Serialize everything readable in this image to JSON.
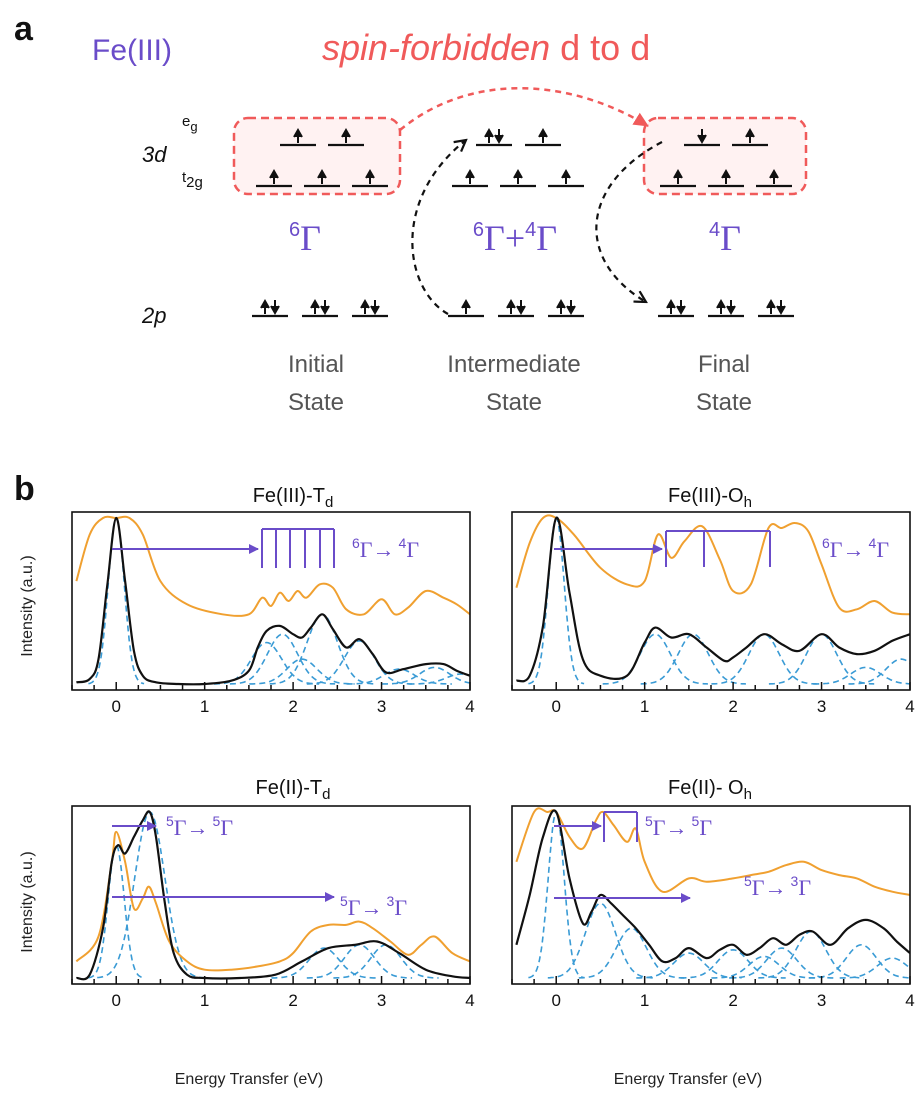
{
  "panel_a": {
    "label": "a",
    "ion": "Fe(III)",
    "forbidden": {
      "italic": "spin-forbidden",
      "rest": " d to d"
    },
    "orbital_3d": "3d",
    "orbital_2p": "2p",
    "eg": {
      "main": "e",
      "sub": "g"
    },
    "t2g": {
      "main": "t",
      "sub": "2g"
    },
    "states": [
      {
        "term": "6Γ",
        "line1": "Initial",
        "line2": "State"
      },
      {
        "term": "6Γ+4Γ",
        "line1": "Intermediate",
        "line2": "State"
      },
      {
        "term": "4Γ",
        "line1": "Final",
        "line2": "State"
      }
    ],
    "term_parts": {
      "initial": [
        {
          "sup": "6",
          "g": "Γ"
        }
      ],
      "intermediate": [
        {
          "sup": "6",
          "g": "Γ"
        },
        {
          "plus": "+"
        },
        {
          "sup": "4",
          "g": "Γ"
        }
      ],
      "final": [
        {
          "sup": "4",
          "g": "Γ"
        }
      ]
    },
    "colors": {
      "purple": "#6a4cc9",
      "red": "#f05a5a",
      "gray": "#555555"
    }
  },
  "panel_b": {
    "label": "b",
    "xlabel": "Energy Transfer (eV)",
    "ylabel": "Intensity (a.u.)",
    "xticks": [
      "0",
      "1",
      "2",
      "3",
      "4"
    ],
    "titles": [
      {
        "main": "Fe(III)-T",
        "sub": "d"
      },
      {
        "main": "Fe(III)-O",
        "sub": "h"
      },
      {
        "main": "Fe(II)-T",
        "sub": "d"
      },
      {
        "main": "Fe(II)- O",
        "sub": "h"
      }
    ],
    "transitions": {
      "t1": {
        "from_sup": "6",
        "to_sup": "4",
        "g": "Γ",
        "arrow": "→"
      },
      "t2": {
        "from_sup": "5",
        "to_sup": "5",
        "g": "Γ",
        "arrow": "→"
      },
      "t3": {
        "from_sup": "5",
        "to_sup": "3",
        "g": "Γ",
        "arrow": "→"
      }
    }
  },
  "chart_data": [
    {
      "type": "line",
      "title": "Fe(III)-Td",
      "xlabel": "",
      "ylabel": "Intensity (a.u.)",
      "xlim": [
        -0.5,
        4
      ],
      "series": [
        {
          "name": "",
          "color": "#f0a030",
          "x": [
            -0.45,
            -0.3,
            -0.15,
            0,
            0.15,
            0.3,
            0.5,
            0.8,
            1.2,
            1.5,
            1.65,
            1.75,
            1.85,
            1.95,
            2.05,
            2.15,
            2.3,
            2.45,
            2.6,
            2.8,
            3.0,
            3.15,
            3.3,
            3.5,
            3.7,
            3.85,
            4.0
          ],
          "y": [
            0.62,
            0.9,
            1.0,
            1.0,
            1.0,
            0.9,
            0.62,
            0.48,
            0.42,
            0.42,
            0.52,
            0.47,
            0.55,
            0.5,
            0.56,
            0.52,
            0.6,
            0.58,
            0.45,
            0.42,
            0.51,
            0.42,
            0.46,
            0.56,
            0.52,
            0.48,
            0.42
          ]
        },
        {
          "name": "",
          "color": "#111111",
          "x": [
            -0.45,
            -0.3,
            -0.2,
            -0.1,
            0,
            0.1,
            0.2,
            0.3,
            0.45,
            0.7,
            1.0,
            1.3,
            1.5,
            1.6,
            1.7,
            1.85,
            2.0,
            2.1,
            2.2,
            2.33,
            2.45,
            2.6,
            2.75,
            2.9,
            3.05,
            3.25,
            3.5,
            3.7,
            3.85,
            4.0
          ],
          "y": [
            0.01,
            0.03,
            0.15,
            0.6,
            1.0,
            0.62,
            0.2,
            0.05,
            0.01,
            0.0,
            0.0,
            0.02,
            0.08,
            0.22,
            0.32,
            0.35,
            0.3,
            0.28,
            0.34,
            0.42,
            0.33,
            0.22,
            0.27,
            0.18,
            0.07,
            0.09,
            0.12,
            0.12,
            0.08,
            0.05
          ]
        },
        {
          "name": "",
          "color": "#3a9bd5",
          "x": [
            0,
            1.7,
            1.88,
            2.1,
            2.33,
            2.75,
            3.2,
            3.6,
            3.9
          ],
          "y": [
            1.0,
            0.25,
            0.3,
            0.15,
            0.42,
            0.26,
            0.09,
            0.1,
            0.06
          ]
        }
      ]
    },
    {
      "type": "line",
      "title": "Fe(III)-Oh",
      "xlabel": "",
      "ylabel": "",
      "xlim": [
        -0.5,
        4
      ],
      "series": [
        {
          "name": "",
          "color": "#f0a030",
          "x": [
            -0.45,
            -0.3,
            -0.15,
            0,
            0.2,
            0.5,
            0.8,
            1.0,
            1.15,
            1.3,
            1.45,
            1.65,
            1.85,
            2.0,
            2.2,
            2.4,
            2.55,
            2.7,
            2.85,
            3.0,
            3.2,
            3.4,
            3.6,
            3.8,
            4.0
          ],
          "y": [
            0.58,
            0.85,
            1.0,
            1.0,
            0.9,
            0.7,
            0.6,
            0.62,
            0.9,
            0.76,
            0.86,
            0.95,
            0.75,
            0.56,
            0.6,
            0.94,
            0.94,
            0.97,
            0.92,
            0.72,
            0.46,
            0.45,
            0.5,
            0.43,
            0.42
          ]
        },
        {
          "name": "",
          "color": "#111111",
          "x": [
            -0.45,
            -0.3,
            -0.15,
            0,
            0.15,
            0.3,
            0.5,
            0.8,
            1.0,
            1.12,
            1.3,
            1.5,
            1.7,
            1.9,
            2.0,
            2.15,
            2.35,
            2.55,
            2.75,
            3.0,
            3.2,
            3.4,
            3.6,
            3.8,
            4.0
          ],
          "y": [
            0.02,
            0.05,
            0.35,
            1.0,
            0.55,
            0.15,
            0.05,
            0.05,
            0.25,
            0.34,
            0.28,
            0.3,
            0.22,
            0.14,
            0.16,
            0.22,
            0.3,
            0.24,
            0.2,
            0.3,
            0.22,
            0.18,
            0.2,
            0.26,
            0.3
          ]
        },
        {
          "name": "",
          "color": "#3a9bd5",
          "x": [
            0,
            1.12,
            1.55,
            2.35,
            3.0,
            3.5,
            3.9
          ],
          "y": [
            1.0,
            0.3,
            0.3,
            0.3,
            0.3,
            0.1,
            0.15
          ]
        }
      ]
    },
    {
      "type": "line",
      "title": "Fe(II)-Td",
      "xlabel": "Energy Transfer (eV)",
      "ylabel": "Intensity (a.u.)",
      "xlim": [
        -0.5,
        4
      ],
      "series": [
        {
          "name": "",
          "color": "#f0a030",
          "x": [
            -0.45,
            -0.2,
            -0.05,
            0.0,
            0.1,
            0.2,
            0.3,
            0.37,
            0.45,
            0.6,
            0.8,
            1.0,
            1.3,
            1.6,
            1.85,
            2.0,
            2.2,
            2.4,
            2.6,
            2.75,
            2.9,
            3.1,
            3.3,
            3.45,
            3.6,
            3.8,
            4.0
          ],
          "y": [
            0.1,
            0.25,
            0.7,
            0.88,
            0.7,
            0.42,
            0.48,
            0.55,
            0.45,
            0.22,
            0.1,
            0.05,
            0.05,
            0.07,
            0.1,
            0.15,
            0.28,
            0.32,
            0.32,
            0.34,
            0.3,
            0.22,
            0.14,
            0.2,
            0.25,
            0.15,
            0.1
          ]
        },
        {
          "name": "",
          "color": "#111111",
          "x": [
            -0.45,
            -0.3,
            -0.15,
            -0.05,
            0.02,
            0.1,
            0.2,
            0.3,
            0.38,
            0.45,
            0.55,
            0.65,
            0.8,
            1.0,
            1.4,
            1.8,
            2.1,
            2.4,
            2.7,
            2.95,
            3.2,
            3.5,
            3.8,
            4.0
          ],
          "y": [
            0.0,
            0.02,
            0.3,
            0.7,
            0.8,
            0.75,
            0.85,
            0.95,
            1.0,
            0.85,
            0.45,
            0.15,
            0.02,
            0.0,
            0.0,
            0.02,
            0.1,
            0.18,
            0.2,
            0.22,
            0.15,
            0.05,
            0.01,
            0.0
          ]
        },
        {
          "name": "",
          "color": "#3a9bd5",
          "x": [
            0.0,
            0.38,
            2.35,
            2.75,
            3.05
          ],
          "y": [
            0.8,
            1.0,
            0.18,
            0.2,
            0.2
          ]
        }
      ]
    },
    {
      "type": "line",
      "title": "Fe(II)- Oh",
      "xlabel": "Energy Transfer (eV)",
      "ylabel": "",
      "xlim": [
        -0.5,
        4
      ],
      "series": [
        {
          "name": "",
          "color": "#f0a030",
          "x": [
            -0.45,
            -0.25,
            -0.1,
            0.0,
            0.15,
            0.3,
            0.45,
            0.53,
            0.65,
            0.8,
            0.9,
            1.0,
            1.2,
            1.5,
            1.7,
            2.0,
            2.2,
            2.4,
            2.6,
            2.8,
            3.0,
            3.2,
            3.4,
            3.6,
            3.8,
            4.0
          ],
          "y": [
            0.7,
            1.0,
            1.0,
            1.0,
            0.85,
            0.78,
            0.95,
            1.0,
            0.92,
            0.82,
            0.9,
            0.7,
            0.52,
            0.6,
            0.58,
            0.6,
            0.62,
            0.64,
            0.68,
            0.7,
            0.65,
            0.62,
            0.6,
            0.55,
            0.52,
            0.5
          ]
        },
        {
          "name": "",
          "color": "#111111",
          "x": [
            -0.45,
            -0.3,
            -0.15,
            0,
            0.15,
            0.3,
            0.4,
            0.5,
            0.62,
            0.75,
            0.9,
            1.05,
            1.2,
            1.35,
            1.5,
            1.7,
            1.85,
            2.0,
            2.15,
            2.3,
            2.45,
            2.6,
            2.75,
            2.9,
            3.1,
            3.3,
            3.5,
            3.7,
            3.85,
            4.0
          ],
          "y": [
            0.2,
            0.5,
            0.85,
            1.0,
            0.6,
            0.33,
            0.4,
            0.5,
            0.45,
            0.38,
            0.3,
            0.2,
            0.1,
            0.12,
            0.18,
            0.12,
            0.17,
            0.2,
            0.14,
            0.18,
            0.24,
            0.2,
            0.26,
            0.28,
            0.2,
            0.3,
            0.35,
            0.3,
            0.22,
            0.15
          ]
        },
        {
          "name": "",
          "color": "#3a9bd5",
          "x": [
            0,
            0.5,
            0.85,
            1.5,
            2.0,
            2.35,
            2.55,
            2.88,
            3.45,
            3.8
          ],
          "y": [
            1.0,
            0.45,
            0.3,
            0.15,
            0.17,
            0.13,
            0.18,
            0.28,
            0.2,
            0.12
          ]
        }
      ]
    }
  ]
}
